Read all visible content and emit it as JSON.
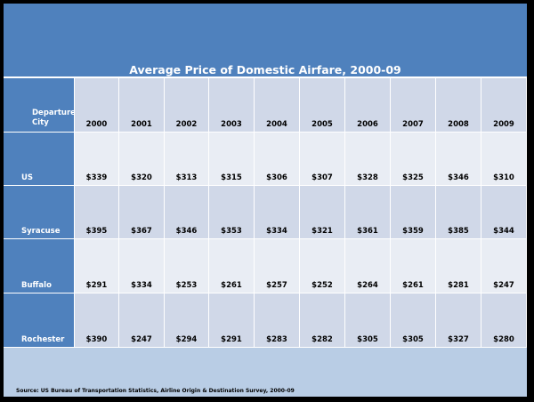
{
  "chart_data": {
    "type": "table",
    "title": "Average Price of Domestic Airfare, 2000-09",
    "row_header_label": "Departure City",
    "columns": [
      "2000",
      "2001",
      "2002",
      "2003",
      "2004",
      "2005",
      "2006",
      "2007",
      "2008",
      "2009"
    ],
    "rows": [
      {
        "city": "US",
        "values": [
          "$339",
          "$320",
          "$313",
          "$315",
          "$306",
          "$307",
          "$328",
          "$325",
          "$346",
          "$310"
        ]
      },
      {
        "city": "Syracuse",
        "values": [
          "$395",
          "$367",
          "$346",
          "$353",
          "$334",
          "$321",
          "$361",
          "$359",
          "$385",
          "$344"
        ]
      },
      {
        "city": "Buffalo",
        "values": [
          "$291",
          "$334",
          "$253",
          "$261",
          "$257",
          "$252",
          "$264",
          "$261",
          "$281",
          "$247"
        ]
      },
      {
        "city": "Rochester",
        "values": [
          "$390",
          "$247",
          "$294",
          "$291",
          "$283",
          "$282",
          "$305",
          "$305",
          "$327",
          "$280"
        ]
      }
    ],
    "source": "Source: US Bureau of Transportation Statistics, Airline Origin & Destination Survey, 2000-09"
  },
  "colors": {
    "header": "#4f81bd",
    "band_dark": "#d0d8e8",
    "band_light": "#e9edf4",
    "background": "#b9cde5"
  }
}
